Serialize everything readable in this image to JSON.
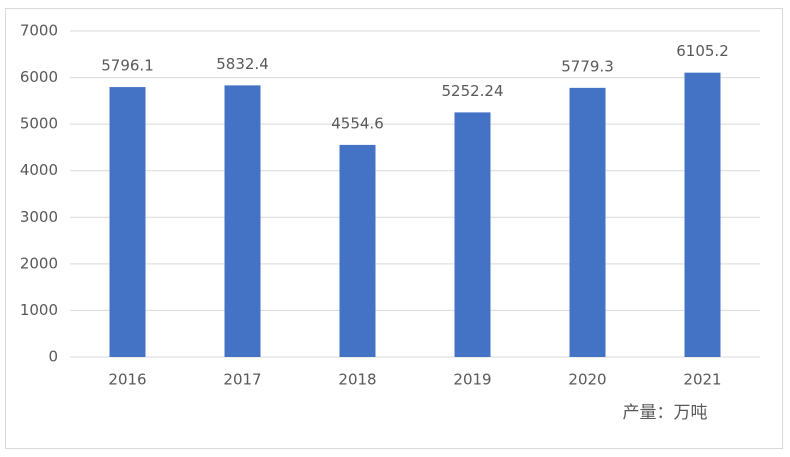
{
  "chart_data": {
    "type": "bar",
    "categories": [
      "2016",
      "2017",
      "2018",
      "2019",
      "2020",
      "2021"
    ],
    "values": [
      5796.1,
      5832.4,
      4554.6,
      5252.24,
      5779.3,
      6105.2
    ],
    "color": "#4472c4",
    "ylim": [
      0,
      7000
    ],
    "yticks": [
      0,
      1000,
      2000,
      3000,
      4000,
      5000,
      6000,
      7000
    ],
    "grid": true,
    "data_labels": true,
    "annotation": "产量：万吨"
  }
}
